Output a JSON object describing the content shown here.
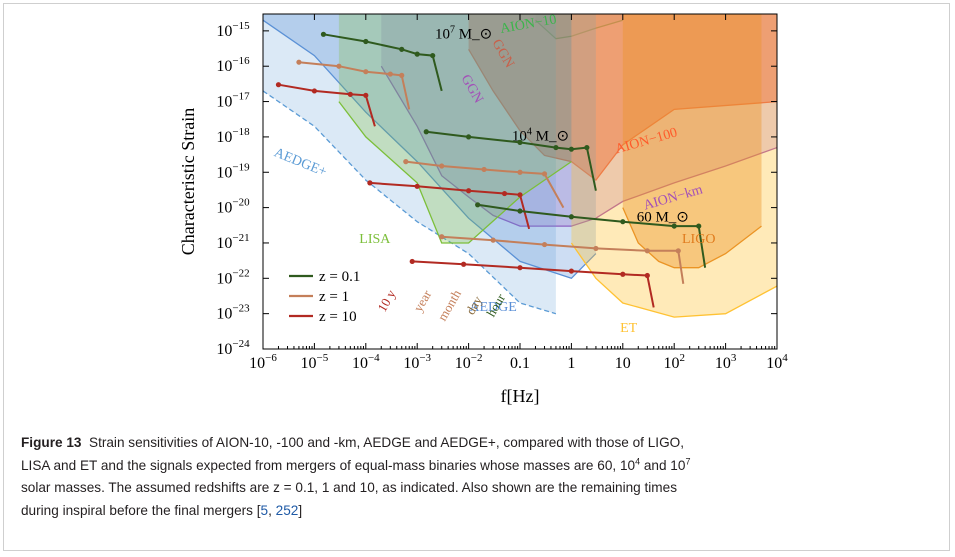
{
  "chart_data": {
    "type": "line",
    "xlabel": "f[Hz]",
    "ylabel": "Characteristic Strain",
    "x_scale": "log",
    "y_scale": "log",
    "xlim": [
      1e-06,
      10000.0
    ],
    "ylim": [
      1e-24,
      3e-15
    ],
    "x_ticks": [
      "10^-6",
      "10^-5",
      "10^-4",
      "10^-3",
      "10^-2",
      "0.1",
      "1",
      "10",
      "10^2",
      "10^3",
      "10^4"
    ],
    "y_ticks": [
      "10^-15",
      "10^-16",
      "10^-17",
      "10^-18",
      "10^-19",
      "10^-20",
      "10^-21",
      "10^-22",
      "10^-23",
      "10^-24"
    ],
    "legend": {
      "placement": "bottom-left",
      "entries": [
        {
          "label": "z = 0.1",
          "color": "#2f5a1e"
        },
        {
          "label": "z = 1",
          "color": "#c47f5a"
        },
        {
          "label": "z = 10",
          "color": "#b22a22"
        }
      ]
    },
    "sensitivity_curves": [
      {
        "name": "AION-10",
        "color": "#3cb44b",
        "x": [
          0.2,
          0.5,
          1,
          3,
          10
        ],
        "y": [
          2e-15,
          6e-16,
          7e-16,
          1.2e-15,
          2e-15
        ]
      },
      {
        "name": "AION-100",
        "color": "#ff5a2a",
        "x": [
          0.01,
          0.03,
          0.1,
          0.3,
          1,
          3,
          10,
          100,
          10000
        ],
        "y": [
          3e-16,
          2e-17,
          1.5e-18,
          3e-19,
          2e-19,
          6e-20,
          6e-19,
          6e-18,
          1e-17
        ]
      },
      {
        "name": "AION-km",
        "color": "#a34fb8",
        "x": [
          0.0002,
          0.001,
          0.003,
          0.01,
          0.03,
          0.1,
          0.3,
          1,
          3,
          10,
          100,
          1000,
          10000
        ],
        "y": [
          1e-16,
          2e-18,
          8e-20,
          2e-20,
          6e-21,
          3e-21,
          3e-21,
          3e-21,
          5e-21,
          1.5e-20,
          5e-20,
          1.5e-19,
          5e-19
        ]
      },
      {
        "name": "AEDGE",
        "color": "#5b8fd6",
        "x": [
          1e-06,
          1e-05,
          0.0001,
          0.001,
          0.01,
          0.1,
          1,
          3
        ],
        "y": [
          2e-15,
          2e-16,
          5e-18,
          2e-19,
          5e-21,
          3e-22,
          1e-22,
          5e-22
        ]
      },
      {
        "name": "AEDGE+",
        "color": "#5b9bd5",
        "x": [
          1e-06,
          1e-05,
          0.0001,
          0.001,
          0.01,
          0.1,
          0.5
        ],
        "y": [
          2e-17,
          2e-18,
          6e-20,
          4e-21,
          5e-22,
          2e-23,
          1e-23
        ]
      },
      {
        "name": "LISA",
        "color": "#7cbf3a",
        "x": [
          3e-05,
          0.0001,
          0.001,
          0.003,
          0.01,
          0.1,
          1
        ],
        "y": [
          1e-17,
          1e-18,
          5e-20,
          1e-21,
          1e-21,
          2e-20,
          2e-19
        ]
      },
      {
        "name": "LIGO",
        "color": "#e07b1d",
        "x": [
          10,
          20,
          50,
          100,
          300,
          1000,
          5000
        ],
        "y": [
          1e-20,
          1e-21,
          3e-22,
          2e-22,
          2e-22,
          5e-22,
          3e-21
        ]
      },
      {
        "name": "ET",
        "color": "#ffc233",
        "x": [
          1,
          3,
          10,
          100,
          1000,
          10000
        ],
        "y": [
          1e-21,
          1e-22,
          2e-23,
          8e-24,
          1e-23,
          6e-23
        ]
      }
    ],
    "signal_tracks": [
      {
        "mass": "10^7 M_⊙",
        "z": "0.1",
        "color": "#2f5a1e",
        "x": [
          1.5e-05,
          0.0001,
          0.0005,
          0.001,
          0.002,
          0.003
        ],
        "y": [
          8e-16,
          5e-16,
          3e-16,
          2.2e-16,
          2e-16,
          2e-17
        ]
      },
      {
        "mass": "10^7 M_⊙",
        "z": "1",
        "color": "#c47f5a",
        "x": [
          5e-06,
          3e-05,
          0.0001,
          0.0003,
          0.0005,
          0.0007
        ],
        "y": [
          1.3e-16,
          1e-16,
          7e-17,
          6e-17,
          5.5e-17,
          6e-18
        ]
      },
      {
        "name": "10^7 M_⊙ z=10",
        "mass": "10^7 M_⊙",
        "z": "10",
        "color": "#b22a22",
        "x": [
          2e-06,
          1e-05,
          5e-05,
          0.0001,
          0.00015
        ],
        "y": [
          3e-17,
          2e-17,
          1.6e-17,
          1.5e-17,
          2e-18
        ]
      },
      {
        "mass": "10^4 M_⊙",
        "z": "0.1",
        "color": "#2f5a1e",
        "x": [
          0.0015,
          0.01,
          0.1,
          0.5,
          1,
          2,
          3
        ],
        "y": [
          1.4e-18,
          1e-18,
          7e-19,
          5e-19,
          4.5e-19,
          5e-19,
          3e-20
        ]
      },
      {
        "mass": "10^4 M_⊙",
        "z": "1",
        "color": "#c47f5a",
        "x": [
          0.0006,
          0.003,
          0.02,
          0.1,
          0.3,
          0.7
        ],
        "y": [
          2e-19,
          1.5e-19,
          1.2e-19,
          1e-19,
          9e-20,
          1e-20
        ]
      },
      {
        "mass": "10^4 M_⊙",
        "z": "10",
        "color": "#b22a22",
        "x": [
          0.00012,
          0.001,
          0.01,
          0.05,
          0.1,
          0.15
        ],
        "y": [
          5e-20,
          4e-20,
          3e-20,
          2.5e-20,
          2.3e-20,
          2.5e-21
        ]
      },
      {
        "mass": "60 M_⊙",
        "z": "0.1",
        "color": "#2f5a1e",
        "x": [
          0.015,
          0.1,
          1,
          10,
          100,
          300,
          400
        ],
        "y": [
          1.2e-20,
          8e-21,
          5.5e-21,
          4e-21,
          3e-21,
          3e-21,
          2e-22
        ]
      },
      {
        "mass": "60 M_⊙",
        "z": "1",
        "color": "#c47f5a",
        "x": [
          0.003,
          0.03,
          0.3,
          3,
          30,
          120,
          150
        ],
        "y": [
          1.5e-21,
          1.2e-21,
          9e-22,
          7e-22,
          6e-22,
          6e-22,
          7e-23
        ]
      },
      {
        "mass": "60 M_⊙",
        "z": "10",
        "color": "#b22a22",
        "x": [
          0.0008,
          0.008,
          0.1,
          1,
          10,
          30,
          40
        ],
        "y": [
          3e-22,
          2.5e-22,
          2e-22,
          1.6e-22,
          1.3e-22,
          1.2e-22,
          1.5e-23
        ]
      }
    ],
    "region_labels": [
      "AION−10",
      "AION−100",
      "AION−km",
      "AEDGE",
      "AEDGE+",
      "LISA",
      "LIGO",
      "ET",
      "GGN",
      "GGN"
    ],
    "mass_labels": [
      "10^7 M_⊙",
      "10^4 M_⊙",
      "60 M_⊙"
    ],
    "time_labels": [
      "10 y",
      "year",
      "month",
      "day",
      "hour"
    ]
  },
  "caption": {
    "label": "Figure 13",
    "line1": "Strain sensitivities of AION-10, -100 and -km, AEDGE and AEDGE+, compared with those of LIGO,",
    "line2_pre": "LISA and ET and the signals expected from mergers of equal-mass binaries whose masses are 60, 10",
    "sup1": "4",
    "line2_mid": " and 10",
    "sup2": "7",
    "line3": "solar masses. The assumed redshifts are z = 0.1, 1 and 10, as indicated. Also shown are the remaining times",
    "line4_pre": "during inspiral before the final mergers [",
    "ref1": "5",
    "ref_sep": ", ",
    "ref2": "252",
    "line4_post": "]"
  }
}
